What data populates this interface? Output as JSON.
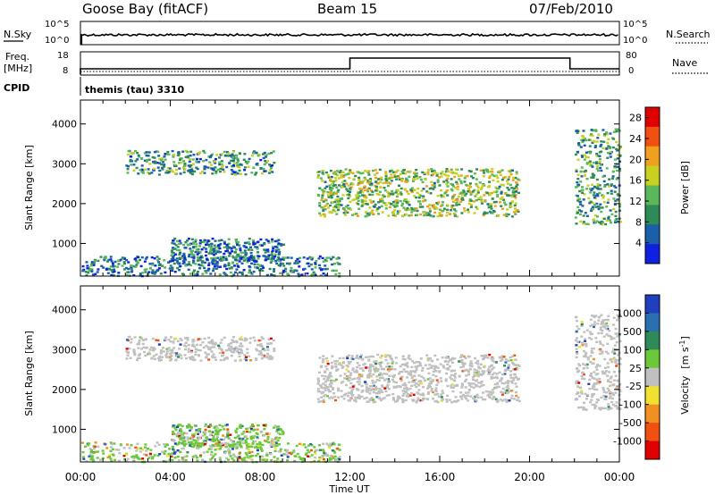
{
  "chart_data": {
    "type": "heatmap",
    "header": {
      "station": "Goose Bay (fitACF)",
      "beam": "Beam 15",
      "date": "07/Feb/2010"
    },
    "top_panels": {
      "nsky": {
        "label": "N.Sky",
        "ticks": [
          "10^5",
          "10^0"
        ]
      },
      "nsearch": {
        "label": "N.Search",
        "ticks": [
          "10^5",
          "10^0"
        ]
      },
      "freq": {
        "label_line1": "Freq.",
        "label_line2": "[MHz]",
        "ticks": [
          "18",
          "8"
        ],
        "steps": [
          {
            "t0": 0.0,
            "t1": 12.0,
            "mhz": 10
          },
          {
            "t0": 12.0,
            "t1": 21.8,
            "mhz": 16
          },
          {
            "t0": 21.8,
            "t1": 24.0,
            "mhz": 10
          }
        ]
      },
      "nave": {
        "label": "Nave",
        "ticks": [
          "80",
          "0"
        ]
      },
      "cpid": {
        "label": "CPID",
        "text": "themis (tau) 3310"
      }
    },
    "x_axis": {
      "label": "Time UT",
      "range_hours": [
        0,
        24
      ],
      "tick_labels": [
        "00:00",
        "04:00",
        "08:00",
        "12:00",
        "16:00",
        "20:00",
        "00:00"
      ],
      "tick_hours": [
        0,
        4,
        8,
        12,
        16,
        20,
        24
      ]
    },
    "y_axis": {
      "label": "Slant Range [km]",
      "range_km": [
        180,
        4600
      ],
      "tick_labels": [
        "1000",
        "2000",
        "3000",
        "4000"
      ],
      "tick_values": [
        1000,
        2000,
        3000,
        4000
      ]
    },
    "power_colorbar": {
      "label": "Power [dB]",
      "tick_labels": [
        "4",
        "8",
        "12",
        "16",
        "20",
        "24",
        "28"
      ],
      "range": [
        0,
        30
      ],
      "colors": [
        "#1020e0",
        "#1a5fa8",
        "#2e8b57",
        "#5ab85a",
        "#c8d020",
        "#f0a020",
        "#f05010",
        "#e00000"
      ]
    },
    "velocity_colorbar": {
      "label": "Velocity",
      "unit": "[m s",
      "unit_sup": "-1",
      "unit_close": "]",
      "tick_labels": [
        "1000",
        "500",
        "100",
        "25",
        "-25",
        "-100",
        "-500",
        "-1000"
      ],
      "colors": [
        "#1f3fbf",
        "#2a6fb0",
        "#2e8b57",
        "#6ac83a",
        "#c0c0c0",
        "#f0e030",
        "#f09020",
        "#f05010",
        "#e00000"
      ]
    },
    "scatter_regions": [
      {
        "name": "early-F-region",
        "t": [
          2.0,
          8.6
        ],
        "r": [
          2750,
          3350
        ],
        "power_mean": 10,
        "vel": "low"
      },
      {
        "name": "E-region-patches",
        "t": [
          4.0,
          9.0
        ],
        "r": [
          580,
          1150
        ],
        "power_mean": 8,
        "vel": "mixed"
      },
      {
        "name": "near-range-ground",
        "t": [
          0.0,
          11.5
        ],
        "r": [
          200,
          700
        ],
        "power_mean": 7,
        "vel": "mixed"
      },
      {
        "name": "main-F-region",
        "t": [
          10.5,
          19.5
        ],
        "r": [
          1700,
          2900
        ],
        "power_mean": 14,
        "vel": "low"
      },
      {
        "name": "late-F-region",
        "t": [
          22.0,
          24.0
        ],
        "r": [
          1500,
          3900
        ],
        "power_mean": 11,
        "vel": "low"
      }
    ]
  }
}
